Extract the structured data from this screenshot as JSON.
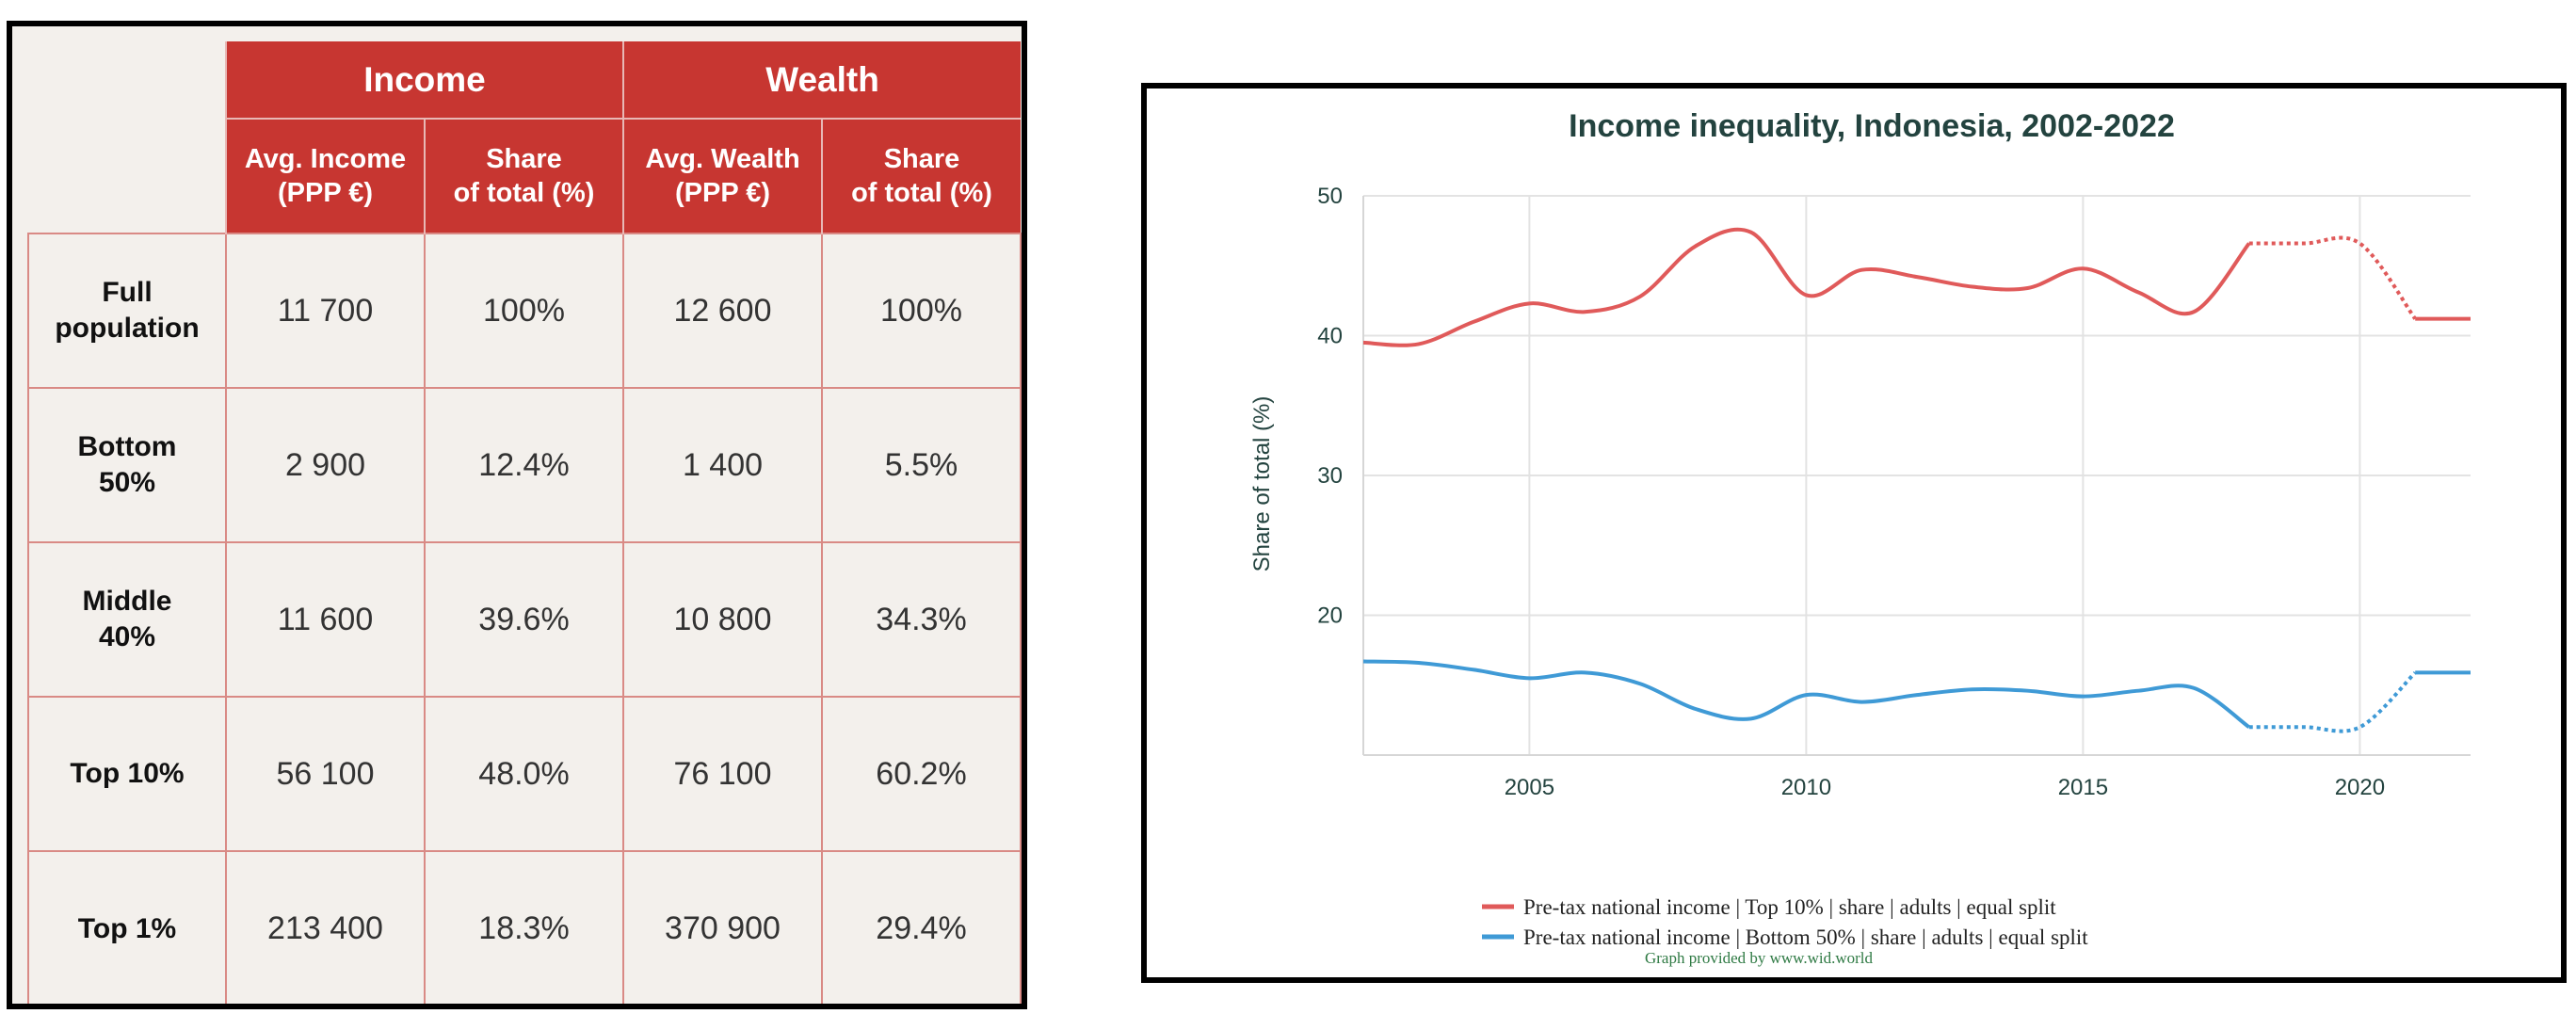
{
  "table": {
    "groups": [
      "Income",
      "Wealth"
    ],
    "subheaders": [
      [
        "Avg. Income",
        "(PPP €)"
      ],
      [
        "Share",
        "of total (%)"
      ],
      [
        "Avg. Wealth",
        "(PPP €)"
      ],
      [
        "Share",
        "of total (%)"
      ]
    ],
    "rows": [
      {
        "label": [
          "Full",
          "population"
        ],
        "cells": [
          "11 700",
          "100%",
          "12 600",
          "100%"
        ]
      },
      {
        "label": [
          "Bottom",
          "50%"
        ],
        "cells": [
          "2 900",
          "12.4%",
          "1 400",
          "5.5%"
        ]
      },
      {
        "label": [
          "Middle",
          "40%"
        ],
        "cells": [
          "11 600",
          "39.6%",
          "10 800",
          "34.3%"
        ]
      },
      {
        "label": [
          "Top 10%",
          ""
        ],
        "cells": [
          "56 100",
          "48.0%",
          "76 100",
          "60.2%"
        ]
      },
      {
        "label": [
          "Top 1%",
          ""
        ],
        "cells": [
          "213 400",
          "18.3%",
          "370 900",
          "29.4%"
        ]
      }
    ],
    "colors": {
      "header": "#c73631",
      "grid": "#d98a85",
      "background": "#f3f0ec"
    }
  },
  "chart_data": {
    "type": "line",
    "title": "Income inequality, Indonesia, 2002-2022",
    "ylabel": "Share of total (%)",
    "xlabel": "",
    "xlim": [
      2002,
      2022
    ],
    "ylim": [
      10,
      50
    ],
    "xticks": [
      2005,
      2010,
      2015,
      2020
    ],
    "yticks": [
      20,
      30,
      40,
      50
    ],
    "grid": true,
    "legend_position": "bottom",
    "series": [
      {
        "name": "Pre-tax national income | Top 10% | share | adults | equal split",
        "color": "#e05a5a",
        "x": [
          2002,
          2003,
          2004,
          2005,
          2006,
          2007,
          2008,
          2009,
          2010,
          2011,
          2012,
          2013,
          2014,
          2015,
          2016,
          2017,
          2018,
          2019,
          2020,
          2021,
          2022
        ],
        "y": [
          39.5,
          39.4,
          41.0,
          42.3,
          41.7,
          42.8,
          46.4,
          47.4,
          42.9,
          44.7,
          44.2,
          43.5,
          43.4,
          44.8,
          43.1,
          41.7,
          46.6,
          46.6,
          46.6,
          41.2,
          41.2
        ],
        "dashed_from": 2018
      },
      {
        "name": "Pre-tax national income | Bottom 50% | share | adults | equal split",
        "color": "#3f9ad6",
        "x": [
          2002,
          2003,
          2004,
          2005,
          2006,
          2007,
          2008,
          2009,
          2010,
          2011,
          2012,
          2013,
          2014,
          2015,
          2016,
          2017,
          2018,
          2019,
          2020,
          2021,
          2022
        ],
        "y": [
          16.7,
          16.6,
          16.1,
          15.5,
          15.9,
          15.1,
          13.3,
          12.6,
          14.3,
          13.8,
          14.3,
          14.7,
          14.6,
          14.2,
          14.6,
          14.8,
          12.0,
          12.0,
          12.0,
          15.9,
          15.9
        ],
        "dashed_from": 2018
      }
    ],
    "credit": "Graph provided by www.wid.world"
  }
}
